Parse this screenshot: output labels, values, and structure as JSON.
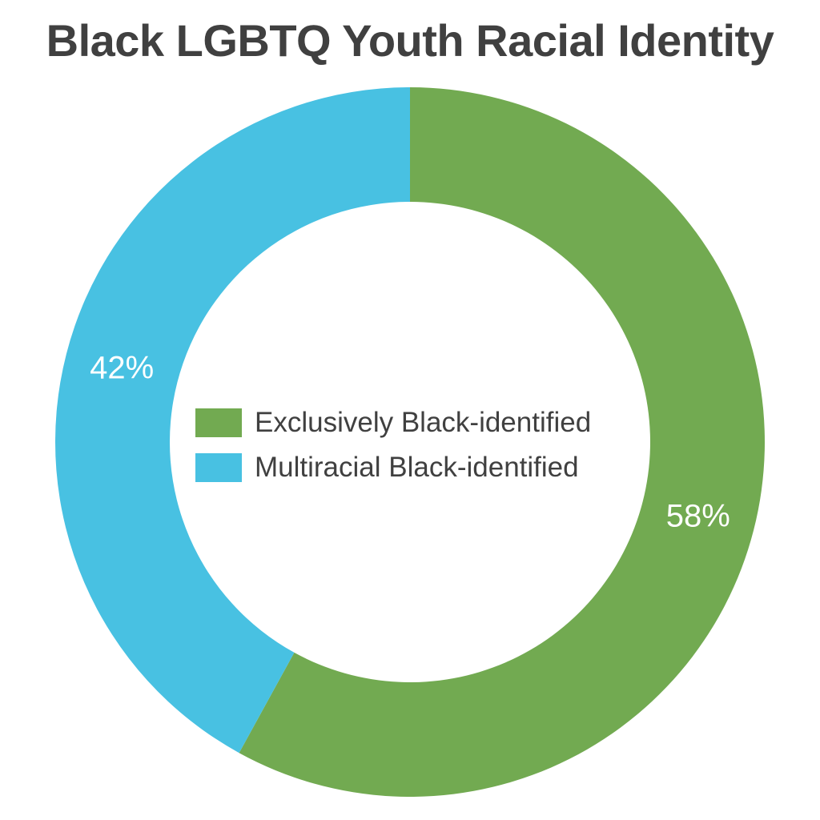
{
  "chart_data": {
    "type": "pie",
    "title": "Black LGBTQ Youth Racial Identity",
    "donut": true,
    "legend_position": "center",
    "slices": [
      {
        "label": "Exclusively Black-identified",
        "value": 58,
        "display": "58%",
        "color": "#72aa51"
      },
      {
        "label": "Multiracial Black-identified",
        "value": 42,
        "display": "42%",
        "color": "#48c1e2"
      }
    ]
  }
}
